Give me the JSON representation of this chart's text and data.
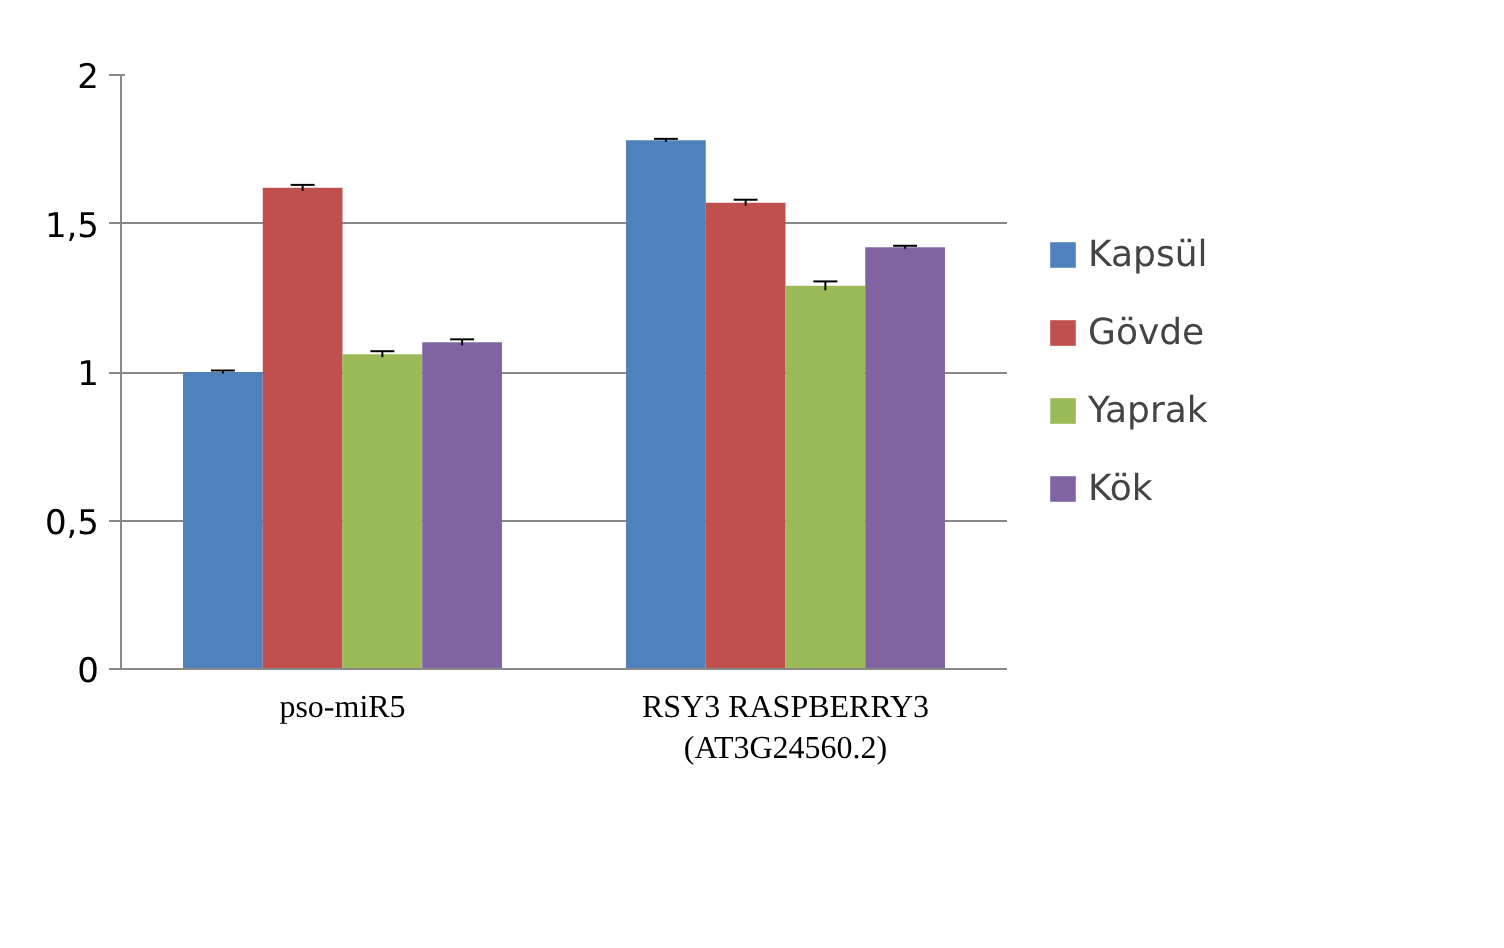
{
  "chart_data": {
    "type": "bar",
    "categories": [
      "pso-miR5",
      "RSY3 RASPBERRY3\n(AT3G24560.2)"
    ],
    "series": [
      {
        "name": "Kapsül",
        "color": "#4f81bd",
        "values": [
          1.0,
          1.78
        ],
        "errors": [
          0.005,
          0.005
        ]
      },
      {
        "name": "Gövde",
        "color": "#c0504d",
        "values": [
          1.62,
          1.57
        ],
        "errors": [
          0.01,
          0.01
        ]
      },
      {
        "name": "Yaprak",
        "color": "#9bbb59",
        "values": [
          1.06,
          1.29
        ],
        "errors": [
          0.01,
          0.015
        ]
      },
      {
        "name": "Kök",
        "color": "#8064a2",
        "values": [
          1.1,
          1.42
        ],
        "errors": [
          0.01,
          0.005
        ]
      }
    ],
    "ylim": [
      0,
      2
    ],
    "yticks": [
      0,
      {
        "value": 0.5,
        "label": "0,5"
      },
      1,
      {
        "value": 1.5,
        "label": "1,5"
      },
      2
    ],
    "grid": "y",
    "legend": "right"
  }
}
